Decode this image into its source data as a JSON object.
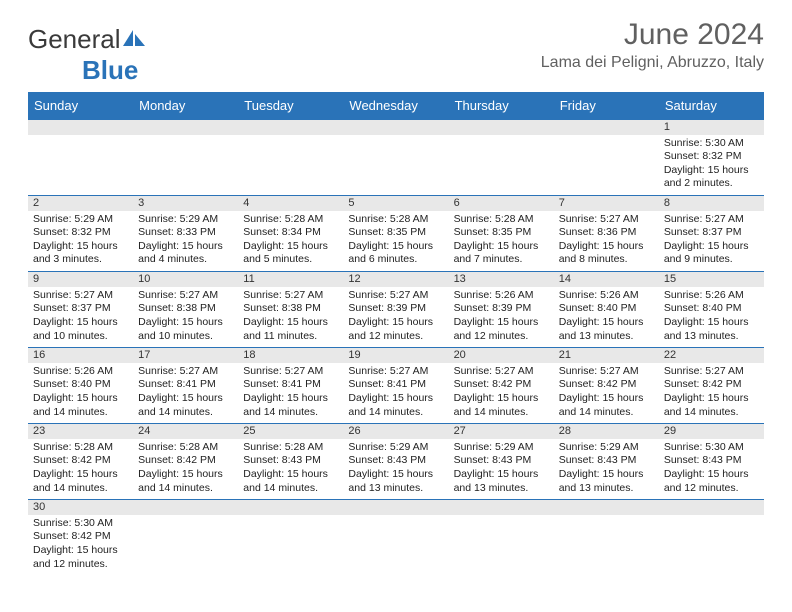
{
  "logo": {
    "text1": "General",
    "text2": "Blue"
  },
  "title": "June 2024",
  "location": "Lama dei Peligni, Abruzzo, Italy",
  "colors": {
    "header_bg": "#2a73b8",
    "header_text": "#ffffff",
    "date_bg": "#e8e8e8",
    "divider": "#2a73b8",
    "title_color": "#606060"
  },
  "weekdays": [
    "Sunday",
    "Monday",
    "Tuesday",
    "Wednesday",
    "Thursday",
    "Friday",
    "Saturday"
  ],
  "weeks": [
    [
      null,
      null,
      null,
      null,
      null,
      null,
      {
        "d": "1",
        "sr": "Sunrise: 5:30 AM",
        "ss": "Sunset: 8:32 PM",
        "dl": "Daylight: 15 hours and 2 minutes."
      }
    ],
    [
      {
        "d": "2",
        "sr": "Sunrise: 5:29 AM",
        "ss": "Sunset: 8:32 PM",
        "dl": "Daylight: 15 hours and 3 minutes."
      },
      {
        "d": "3",
        "sr": "Sunrise: 5:29 AM",
        "ss": "Sunset: 8:33 PM",
        "dl": "Daylight: 15 hours and 4 minutes."
      },
      {
        "d": "4",
        "sr": "Sunrise: 5:28 AM",
        "ss": "Sunset: 8:34 PM",
        "dl": "Daylight: 15 hours and 5 minutes."
      },
      {
        "d": "5",
        "sr": "Sunrise: 5:28 AM",
        "ss": "Sunset: 8:35 PM",
        "dl": "Daylight: 15 hours and 6 minutes."
      },
      {
        "d": "6",
        "sr": "Sunrise: 5:28 AM",
        "ss": "Sunset: 8:35 PM",
        "dl": "Daylight: 15 hours and 7 minutes."
      },
      {
        "d": "7",
        "sr": "Sunrise: 5:27 AM",
        "ss": "Sunset: 8:36 PM",
        "dl": "Daylight: 15 hours and 8 minutes."
      },
      {
        "d": "8",
        "sr": "Sunrise: 5:27 AM",
        "ss": "Sunset: 8:37 PM",
        "dl": "Daylight: 15 hours and 9 minutes."
      }
    ],
    [
      {
        "d": "9",
        "sr": "Sunrise: 5:27 AM",
        "ss": "Sunset: 8:37 PM",
        "dl": "Daylight: 15 hours and 10 minutes."
      },
      {
        "d": "10",
        "sr": "Sunrise: 5:27 AM",
        "ss": "Sunset: 8:38 PM",
        "dl": "Daylight: 15 hours and 10 minutes."
      },
      {
        "d": "11",
        "sr": "Sunrise: 5:27 AM",
        "ss": "Sunset: 8:38 PM",
        "dl": "Daylight: 15 hours and 11 minutes."
      },
      {
        "d": "12",
        "sr": "Sunrise: 5:27 AM",
        "ss": "Sunset: 8:39 PM",
        "dl": "Daylight: 15 hours and 12 minutes."
      },
      {
        "d": "13",
        "sr": "Sunrise: 5:26 AM",
        "ss": "Sunset: 8:39 PM",
        "dl": "Daylight: 15 hours and 12 minutes."
      },
      {
        "d": "14",
        "sr": "Sunrise: 5:26 AM",
        "ss": "Sunset: 8:40 PM",
        "dl": "Daylight: 15 hours and 13 minutes."
      },
      {
        "d": "15",
        "sr": "Sunrise: 5:26 AM",
        "ss": "Sunset: 8:40 PM",
        "dl": "Daylight: 15 hours and 13 minutes."
      }
    ],
    [
      {
        "d": "16",
        "sr": "Sunrise: 5:26 AM",
        "ss": "Sunset: 8:40 PM",
        "dl": "Daylight: 15 hours and 14 minutes."
      },
      {
        "d": "17",
        "sr": "Sunrise: 5:27 AM",
        "ss": "Sunset: 8:41 PM",
        "dl": "Daylight: 15 hours and 14 minutes."
      },
      {
        "d": "18",
        "sr": "Sunrise: 5:27 AM",
        "ss": "Sunset: 8:41 PM",
        "dl": "Daylight: 15 hours and 14 minutes."
      },
      {
        "d": "19",
        "sr": "Sunrise: 5:27 AM",
        "ss": "Sunset: 8:41 PM",
        "dl": "Daylight: 15 hours and 14 minutes."
      },
      {
        "d": "20",
        "sr": "Sunrise: 5:27 AM",
        "ss": "Sunset: 8:42 PM",
        "dl": "Daylight: 15 hours and 14 minutes."
      },
      {
        "d": "21",
        "sr": "Sunrise: 5:27 AM",
        "ss": "Sunset: 8:42 PM",
        "dl": "Daylight: 15 hours and 14 minutes."
      },
      {
        "d": "22",
        "sr": "Sunrise: 5:27 AM",
        "ss": "Sunset: 8:42 PM",
        "dl": "Daylight: 15 hours and 14 minutes."
      }
    ],
    [
      {
        "d": "23",
        "sr": "Sunrise: 5:28 AM",
        "ss": "Sunset: 8:42 PM",
        "dl": "Daylight: 15 hours and 14 minutes."
      },
      {
        "d": "24",
        "sr": "Sunrise: 5:28 AM",
        "ss": "Sunset: 8:42 PM",
        "dl": "Daylight: 15 hours and 14 minutes."
      },
      {
        "d": "25",
        "sr": "Sunrise: 5:28 AM",
        "ss": "Sunset: 8:43 PM",
        "dl": "Daylight: 15 hours and 14 minutes."
      },
      {
        "d": "26",
        "sr": "Sunrise: 5:29 AM",
        "ss": "Sunset: 8:43 PM",
        "dl": "Daylight: 15 hours and 13 minutes."
      },
      {
        "d": "27",
        "sr": "Sunrise: 5:29 AM",
        "ss": "Sunset: 8:43 PM",
        "dl": "Daylight: 15 hours and 13 minutes."
      },
      {
        "d": "28",
        "sr": "Sunrise: 5:29 AM",
        "ss": "Sunset: 8:43 PM",
        "dl": "Daylight: 15 hours and 13 minutes."
      },
      {
        "d": "29",
        "sr": "Sunrise: 5:30 AM",
        "ss": "Sunset: 8:43 PM",
        "dl": "Daylight: 15 hours and 12 minutes."
      }
    ],
    [
      {
        "d": "30",
        "sr": "Sunrise: 5:30 AM",
        "ss": "Sunset: 8:42 PM",
        "dl": "Daylight: 15 hours and 12 minutes."
      },
      null,
      null,
      null,
      null,
      null,
      null
    ]
  ]
}
